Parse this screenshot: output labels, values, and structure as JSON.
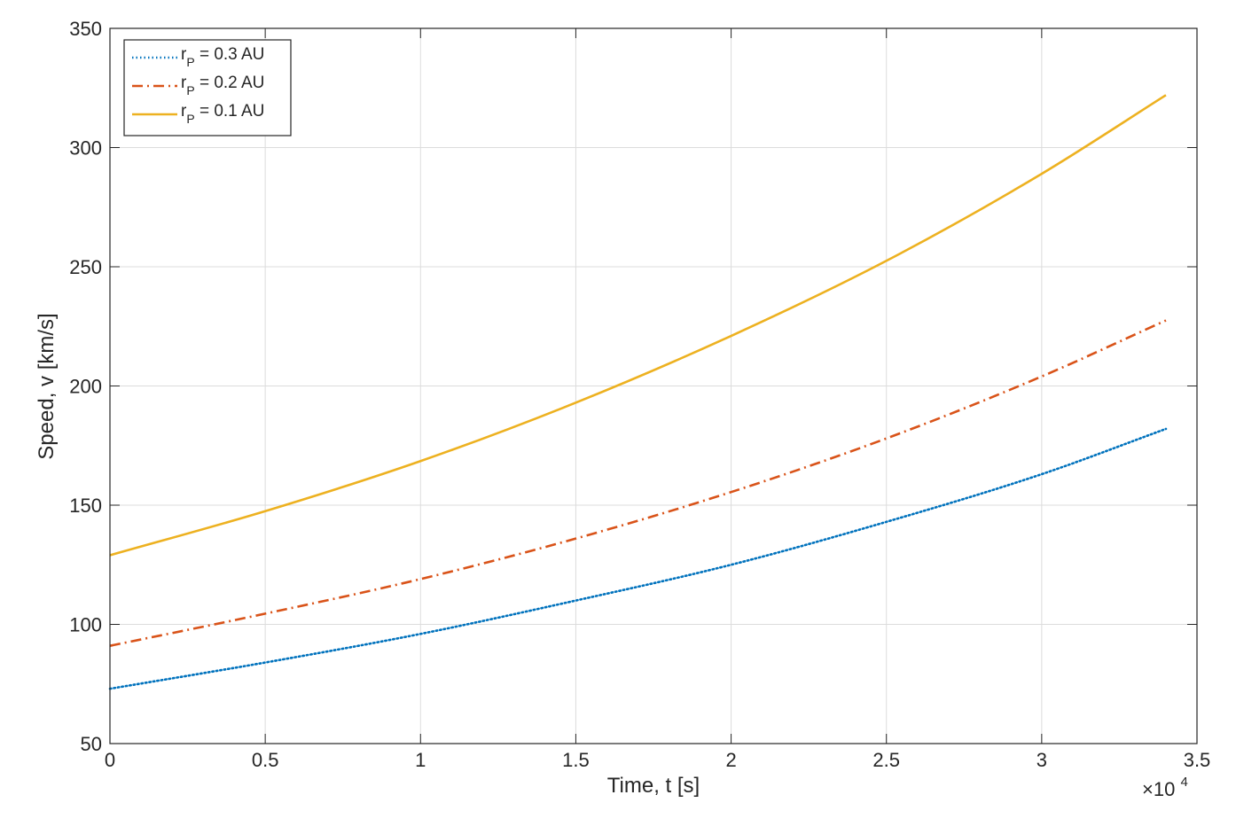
{
  "chart_data": {
    "type": "line",
    "title": "",
    "xlabel": "Time, t [s]",
    "ylabel": "Speed, v [km/s]",
    "x_multiplier_base": "×10",
    "x_multiplier_exp": "4",
    "xlim": [
      0,
      3.5
    ],
    "ylim": [
      50,
      350
    ],
    "xticks": [
      0,
      0.5,
      1,
      1.5,
      2,
      2.5,
      3,
      3.5
    ],
    "xtick_labels": [
      "0",
      "0.5",
      "1",
      "1.5",
      "2",
      "2.5",
      "3",
      "3.5"
    ],
    "yticks": [
      50,
      100,
      150,
      200,
      250,
      300,
      350
    ],
    "ytick_labels": [
      "50",
      "100",
      "150",
      "200",
      "250",
      "300",
      "350"
    ],
    "grid": true,
    "legend_position": "top-left",
    "x": [
      0,
      0.5,
      1.0,
      1.5,
      2.0,
      2.5,
      3.0,
      3.4
    ],
    "series": [
      {
        "name_main": "r",
        "name_sub": "P",
        "name_rest": " = 0.3 AU",
        "color": "#0072BD",
        "style": "dotted",
        "values": [
          73,
          84,
          96,
          110,
          125,
          143,
          163,
          182
        ]
      },
      {
        "name_main": "r",
        "name_sub": "P",
        "name_rest": " = 0.2 AU",
        "color": "#D95319",
        "style": "dashdot",
        "values": [
          91,
          104.5,
          119,
          136,
          155.5,
          178,
          204,
          227.5
        ]
      },
      {
        "name_main": "r",
        "name_sub": "P",
        "name_rest": " = 0.1 AU",
        "color": "#EDB120",
        "style": "solid",
        "values": [
          129,
          147.5,
          168.5,
          193,
          221,
          252.5,
          289,
          322
        ]
      }
    ]
  }
}
